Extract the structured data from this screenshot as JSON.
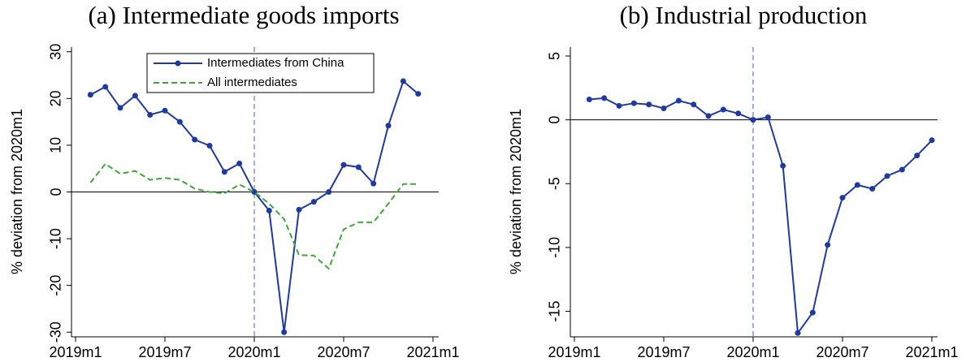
{
  "chart_data": [
    {
      "type": "line",
      "title": "(a) Intermediate goods imports",
      "y_label": "% deviation from 2020m1",
      "x": [
        "2019m2",
        "2019m3",
        "2019m4",
        "2019m5",
        "2019m6",
        "2019m7",
        "2019m8",
        "2019m9",
        "2019m10",
        "2019m11",
        "2019m12",
        "2020m1",
        "2020m2",
        "2020m3",
        "2020m4",
        "2020m5",
        "2020m6",
        "2020m7",
        "2020m8",
        "2020m9",
        "2020m10",
        "2020m11",
        "2020m12"
      ],
      "series": [
        {
          "name": "Intermediates from China",
          "color": "#1f3a9e",
          "style": "solid",
          "markers": true,
          "values": [
            20.8,
            22.5,
            18,
            20.6,
            16.5,
            17.4,
            15,
            11.2,
            9.9,
            4.3,
            6.1,
            0,
            -4,
            -30,
            -3.8,
            -2.1,
            0,
            5.8,
            5.3,
            1.8,
            14.2,
            23.7,
            21
          ]
        },
        {
          "name": "All intermediates",
          "color": "#3aaa35",
          "style": "dashed",
          "markers": false,
          "values": [
            2,
            6,
            3.9,
            4.5,
            2.6,
            3,
            2.6,
            0.7,
            0,
            -0.3,
            1.6,
            0,
            -2.5,
            -5.8,
            -13.5,
            -13.6,
            -16.4,
            -8,
            -6.5,
            -6.5,
            -2.5,
            1.7,
            1.7
          ]
        }
      ],
      "xlim": [
        "2019m1",
        "2021m1"
      ],
      "xticks": [
        "2019m1",
        "2019m7",
        "2020m1",
        "2020m7",
        "2021m1"
      ],
      "ylim": [
        -31,
        31
      ],
      "yticks": [
        -30,
        -20,
        -10,
        0,
        10,
        20,
        30
      ],
      "vline": "2020m1",
      "hline": 0,
      "legend": "top"
    },
    {
      "type": "line",
      "title": "(b) Industrial production",
      "y_label": "% deviation from 2020m1",
      "x": [
        "2019m2",
        "2019m3",
        "2019m4",
        "2019m5",
        "2019m6",
        "2019m7",
        "2019m8",
        "2019m9",
        "2019m10",
        "2019m11",
        "2019m12",
        "2020m1",
        "2020m2",
        "2020m3",
        "2020m4",
        "2020m5",
        "2020m6",
        "2020m7",
        "2020m8",
        "2020m9",
        "2020m10",
        "2020m11",
        "2020m12",
        "2021m1"
      ],
      "series": [
        {
          "color": "#1f3a9e",
          "style": "solid",
          "markers": true,
          "values": [
            1.6,
            1.7,
            1.1,
            1.3,
            1.2,
            0.9,
            1.5,
            1.2,
            0.3,
            0.8,
            0.5,
            0,
            0.2,
            -3.6,
            -16.7,
            -15.1,
            -9.8,
            -6.1,
            -5.1,
            -5.4,
            -4.4,
            -3.9,
            -2.8,
            -1.6
          ]
        }
      ],
      "xlim": [
        "2019m1",
        "2021m1"
      ],
      "xticks": [
        "2019m1",
        "2019m7",
        "2020m1",
        "2020m7",
        "2021m1"
      ],
      "ylim": [
        -17,
        5.7
      ],
      "yticks": [
        -15,
        -10,
        -5,
        0,
        5
      ],
      "vline": "2020m1",
      "hline": 0
    }
  ]
}
